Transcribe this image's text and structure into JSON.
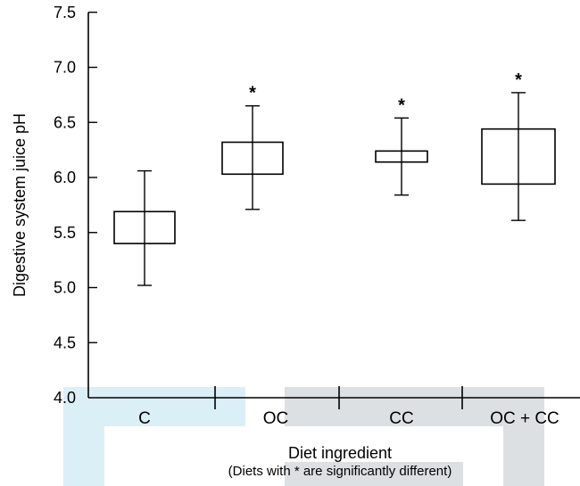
{
  "chart_data": {
    "type": "box",
    "title": "",
    "xlabel": "Diet ingredient",
    "ylabel": "Digestive system juice pH",
    "note": "(Diets with * are significantly different)",
    "ylim": [
      4.0,
      7.5
    ],
    "yticks": [
      "4.0",
      "4.5",
      "5.0",
      "5.5",
      "6.0",
      "6.5",
      "7.0",
      "7.5"
    ],
    "categories": [
      "C",
      "OC",
      "CC",
      "OC + CC"
    ],
    "boxes": [
      {
        "category": "C",
        "whisker_low": 5.02,
        "q1": 5.4,
        "q3": 5.69,
        "whisker_high": 6.06,
        "significant": false
      },
      {
        "category": "OC",
        "whisker_low": 5.71,
        "q1": 6.03,
        "q3": 6.32,
        "whisker_high": 6.65,
        "significant": true
      },
      {
        "category": "CC",
        "whisker_low": 5.84,
        "q1": 6.14,
        "q3": 6.24,
        "whisker_high": 6.54,
        "significant": true
      },
      {
        "category": "OC + CC",
        "whisker_low": 5.61,
        "q1": 5.94,
        "q3": 6.44,
        "whisker_high": 6.77,
        "significant": true
      }
    ],
    "significance_marker": "*",
    "grid": false,
    "legend": "none",
    "colors": {
      "highlight_blue": "#dbeff6",
      "highlight_gray": "#dde0e3",
      "ink": "#000000"
    }
  }
}
